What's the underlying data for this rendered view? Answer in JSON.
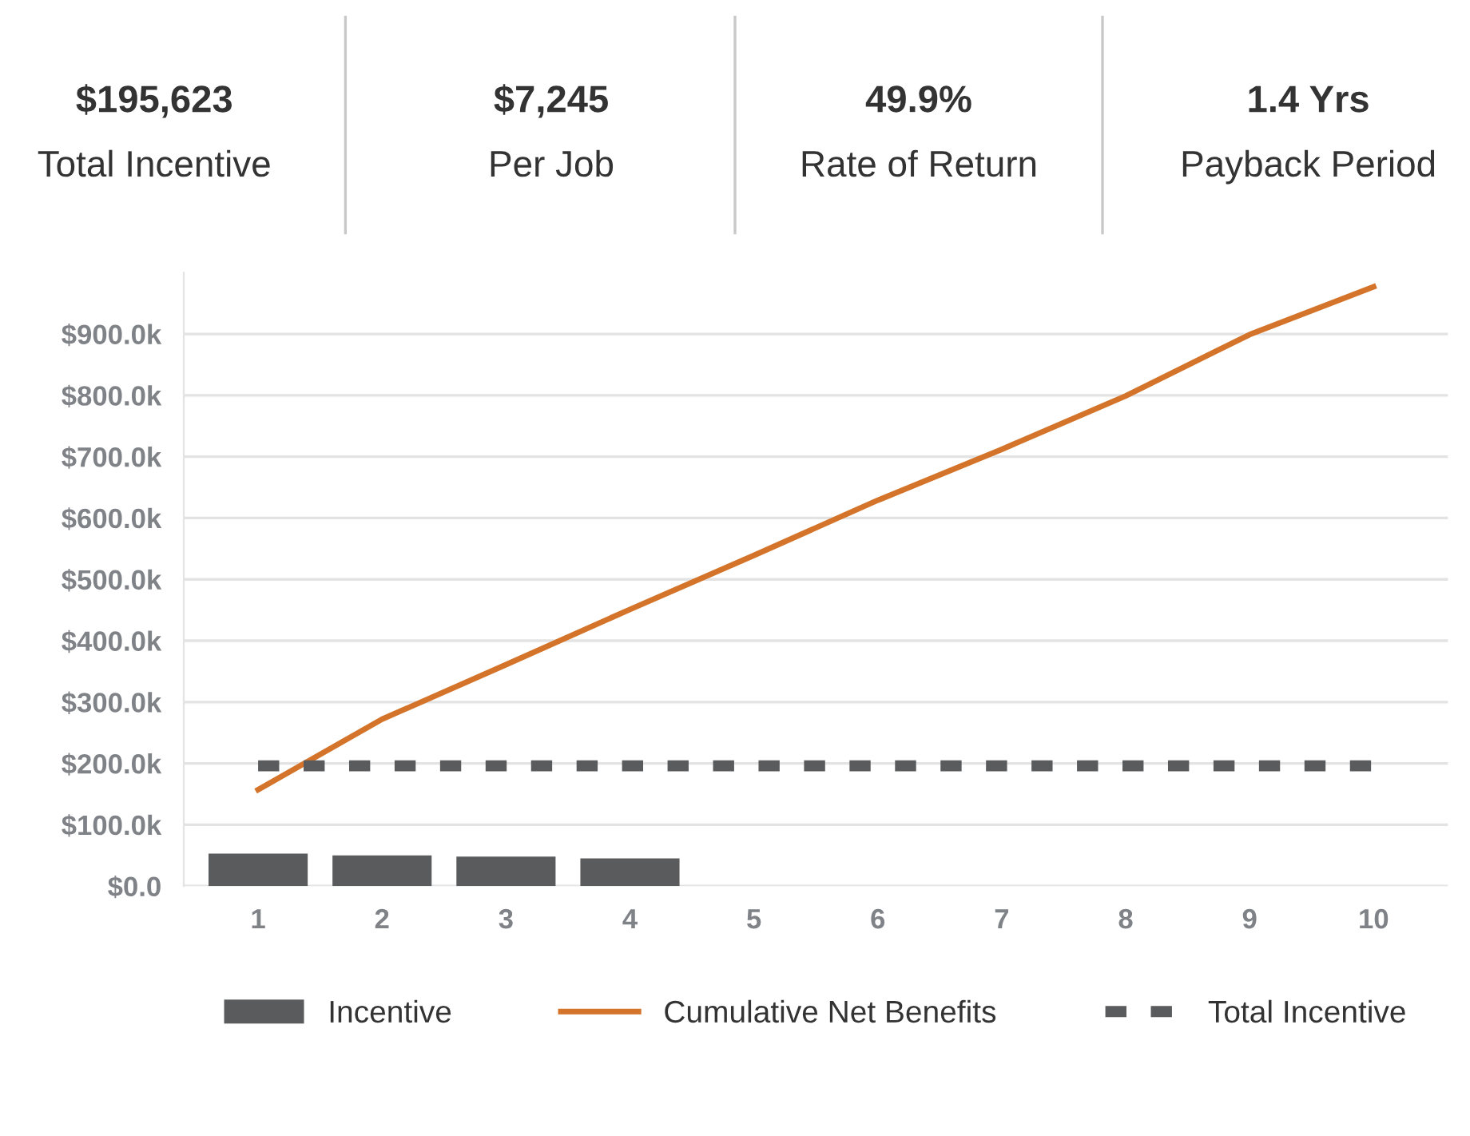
{
  "chart_data": {
    "type": "bar",
    "categories": [
      "1",
      "2",
      "3",
      "4",
      "5",
      "6",
      "7",
      "8",
      "9",
      "10"
    ],
    "series": [
      {
        "name": "Incentive",
        "color": "#5a5b5d",
        "values": [
          53,
          50,
          48,
          45,
          null,
          null,
          null,
          null,
          null,
          null
        ]
      },
      {
        "name": "Cumulative Net Benefits",
        "type": "line",
        "color": "#d4742a",
        "line_style": "solid",
        "values": [
          157,
          272,
          361,
          451,
          539,
          629,
          712,
          799,
          899,
          977
        ]
      },
      {
        "name": "Total Incentive",
        "type": "line",
        "color": "#5a5b5d",
        "line_style": "dashed",
        "values": [
          196,
          196,
          196,
          196,
          196,
          196,
          196,
          196,
          196,
          196
        ]
      }
    ],
    "ylim": [
      0,
      1000
    ],
    "yticks": [
      {
        "value": 0,
        "label": "$0.0"
      },
      {
        "value": 100,
        "label": "$100.0k"
      },
      {
        "value": 200,
        "label": "$200.0k"
      },
      {
        "value": 300,
        "label": "$300.0k"
      },
      {
        "value": 400,
        "label": "$400.0k"
      },
      {
        "value": 500,
        "label": "$500.0k"
      },
      {
        "value": 600,
        "label": "$600.0k"
      },
      {
        "value": 700,
        "label": "$700.0k"
      },
      {
        "value": 800,
        "label": "$800.0k"
      },
      {
        "value": 900,
        "label": "$900.0k"
      }
    ],
    "grid": "y",
    "legend": "bottom",
    "annotations": [
      "$195,623",
      "Total Incentive",
      "$7,245",
      "Per Job",
      "49.9%",
      "Rate of Return",
      "1.4 Yrs",
      "Payback Period"
    ]
  }
}
